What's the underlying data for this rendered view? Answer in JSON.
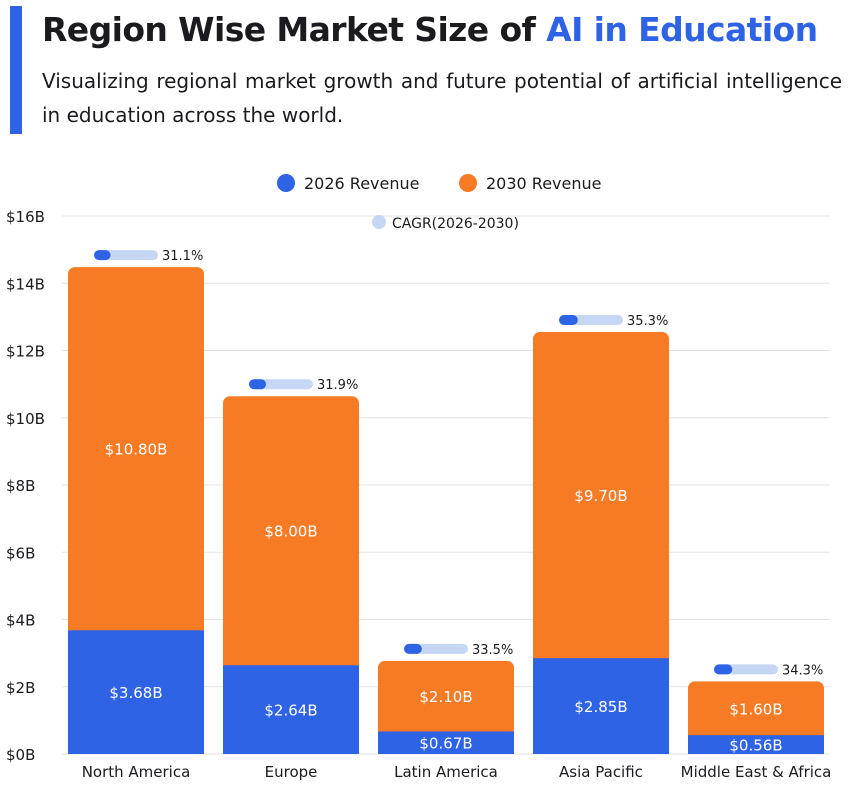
{
  "header": {
    "title_main": "Region Wise Market Size of ",
    "title_highlight": "AI in Education",
    "subtitle": "Visualizing regional market growth and future potential of artificial intelligence in education across the world."
  },
  "colors": {
    "accent": "#2f63e6",
    "revenue_2026": "#2f63e6",
    "revenue_2030": "#f77a24",
    "cagr_track": "#c6d7f6",
    "cagr_fill": "#2f63e6",
    "grid": "#e3e3e3",
    "text": "#1b1b1f"
  },
  "chart_data": {
    "type": "bar",
    "stacked": true,
    "categories": [
      "North America",
      "Europe",
      "Latin America",
      "Asia Pacific",
      "Middle East & Africa"
    ],
    "series": [
      {
        "name": "2026 Revenue",
        "values": [
          3.68,
          2.64,
          0.67,
          2.85,
          0.56
        ],
        "labels": [
          "$3.68B",
          "$2.64B",
          "$0.67B",
          "$2.85B",
          "$0.56B"
        ]
      },
      {
        "name": "2030 Revenue",
        "values": [
          10.8,
          8.0,
          2.1,
          9.7,
          1.6
        ],
        "labels": [
          "$10.80B",
          "$8.00B",
          "$2.10B",
          "$9.70B",
          "$1.60B"
        ]
      }
    ],
    "cagr": {
      "name": "CAGR(2026-2030)",
      "values": [
        31.1,
        31.9,
        33.5,
        35.3,
        34.3
      ],
      "labels": [
        "31.1%",
        "31.9%",
        "33.5%",
        "35.3%",
        "34.3%"
      ]
    },
    "ylim": [
      0,
      16
    ],
    "yticks": [
      0,
      2,
      4,
      6,
      8,
      10,
      12,
      14,
      16
    ],
    "ytick_labels": [
      "$0B",
      "$2B",
      "$4B",
      "$6B",
      "$8B",
      "$10B",
      "$12B",
      "$14B",
      "$16B"
    ],
    "grid": true,
    "legend_position": "top-center"
  }
}
